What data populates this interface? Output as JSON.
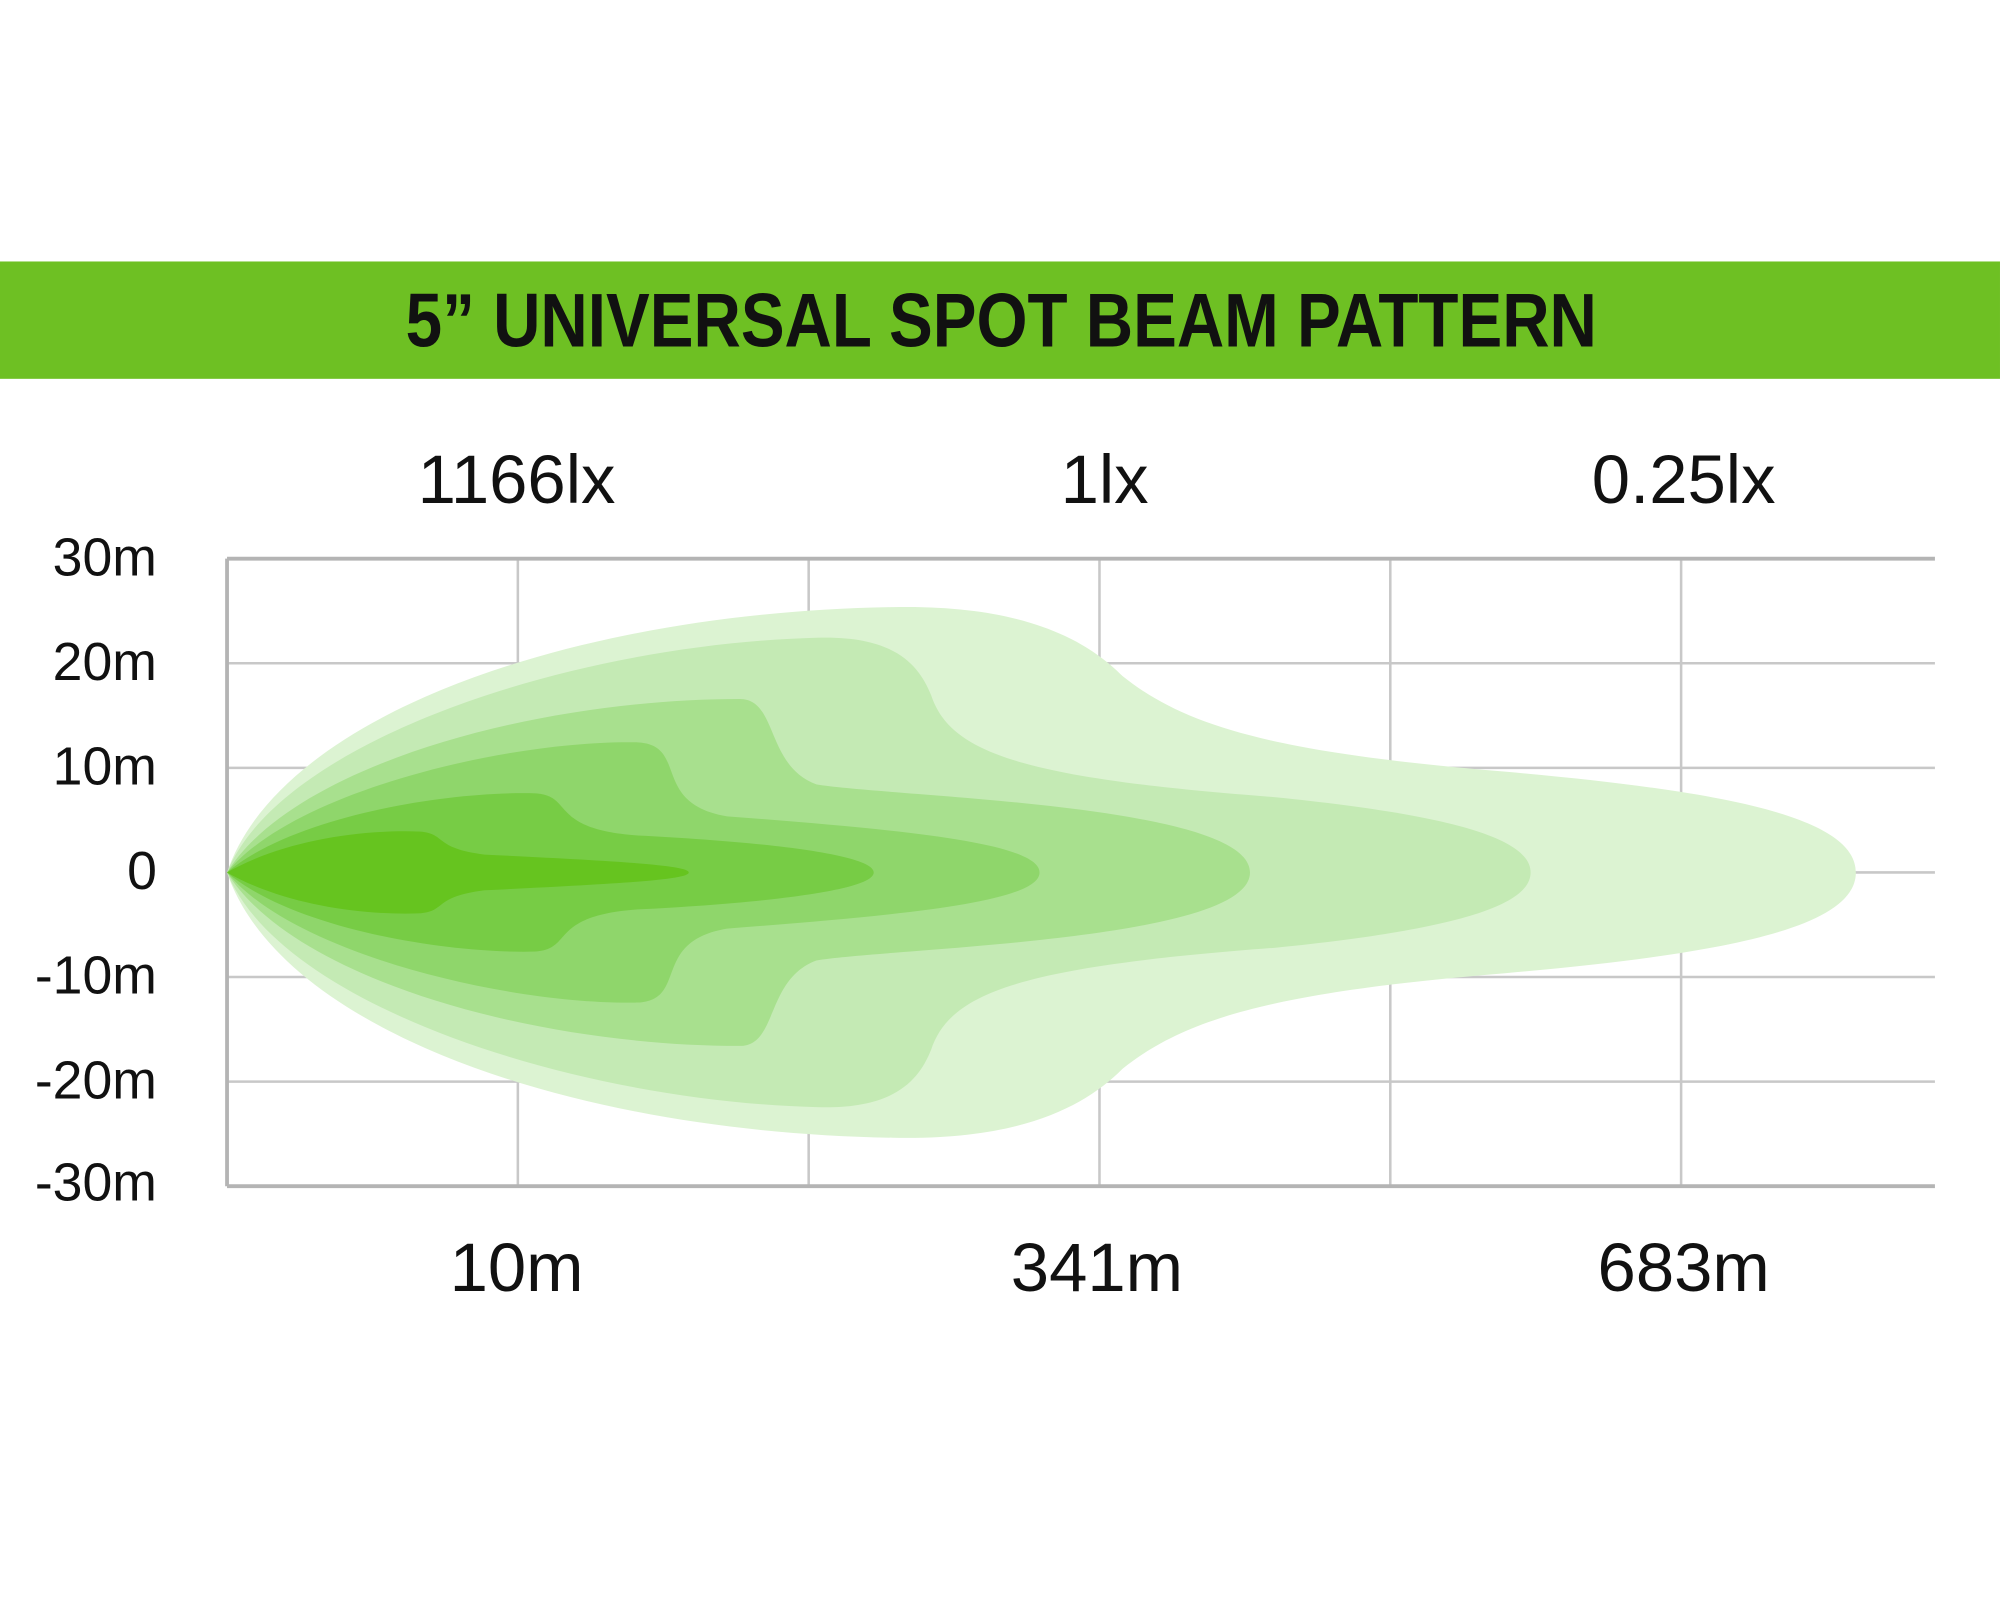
{
  "header": {
    "title": "5” UNIVERSAL SPOT BEAM PATTERN"
  },
  "lux_labels": [
    "1166lx",
    "1lx",
    "0.25lx"
  ],
  "y_axis_labels": [
    "30m",
    "20m",
    "10m",
    "0",
    "-10m",
    "-20m",
    "-30m"
  ],
  "distance_labels": [
    "10m",
    "341m",
    "683m"
  ]
}
